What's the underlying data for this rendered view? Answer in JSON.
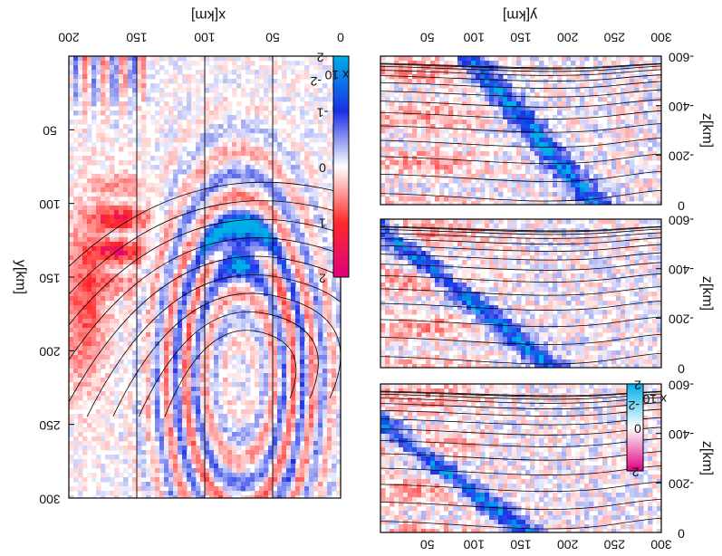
{
  "figure": {
    "orientation_note": "figure is rendered upside-down (rotated 180 degrees)"
  },
  "chart_data": [
    {
      "type": "heatmap",
      "panel": "left-map",
      "xlabel": "x[km]",
      "ylabel": "y[km]",
      "xlim": [
        0,
        200
      ],
      "ylim": [
        0,
        300
      ],
      "xticks": [
        "0",
        "50",
        "100",
        "150",
        "200"
      ],
      "yticks": [
        "50",
        "100",
        "150",
        "200",
        "250",
        "300"
      ],
      "grid": "vertical lines at x=50, 100, 150",
      "colorbar": {
        "ticks": [
          "-2",
          "-1",
          "0",
          "1",
          "2"
        ],
        "exponent_label": "x 10",
        "exponent_power": "-2",
        "colors": [
          "#e0007f",
          "#ff2020",
          "#ffffff",
          "#1010e0",
          "#00b0e8"
        ]
      }
    },
    {
      "type": "heatmap",
      "panel": "right-top",
      "xlabel": "y[km]",
      "ylabel": "z[km]",
      "xlim": [
        0,
        300
      ],
      "ylim": [
        0,
        -600
      ],
      "xticks": [
        "50",
        "100",
        "150",
        "200",
        "250",
        "300"
      ],
      "yticks": [
        "0",
        "-200",
        "-400",
        "-600"
      ]
    },
    {
      "type": "heatmap",
      "panel": "right-middle",
      "ylabel": "z[km]",
      "xlim": [
        0,
        300
      ],
      "ylim": [
        0,
        -600
      ],
      "yticks": [
        "0",
        "-200",
        "-400",
        "-600"
      ]
    },
    {
      "type": "heatmap",
      "panel": "right-bottom",
      "xlabel": "",
      "ylabel": "z[km]",
      "xlim": [
        0,
        300
      ],
      "ylim": [
        0,
        -600
      ],
      "xticks": [
        "50",
        "100",
        "150",
        "200",
        "250",
        "300"
      ],
      "yticks": [
        "0",
        "-200",
        "-400",
        "-600"
      ],
      "colorbar": {
        "ticks": [
          "2",
          "0",
          "-2"
        ],
        "exponent_label": "x 10",
        "exponent_power": "-2"
      }
    }
  ],
  "colors": {
    "red": "#ff2a2a",
    "blue": "#1a2fe6",
    "cyan": "#00aeea",
    "magenta": "#e0007f",
    "contour": "#000000"
  }
}
